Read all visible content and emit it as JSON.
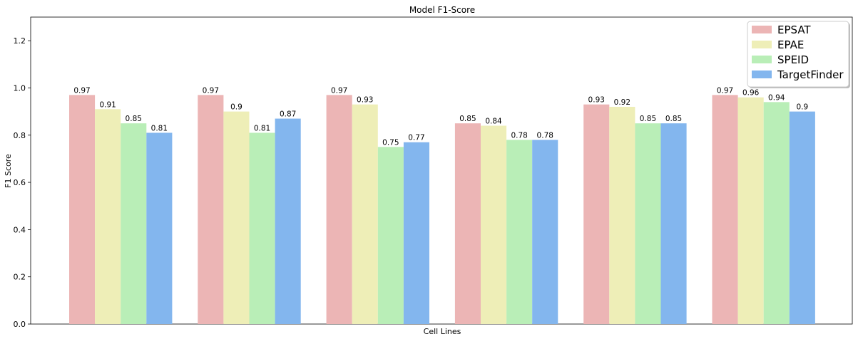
{
  "chart_data": {
    "type": "bar",
    "title": "Model F1-Score",
    "xlabel": "Cell Lines",
    "ylabel": "F1 Score",
    "ylim": [
      0,
      1.3
    ],
    "yticks": [
      "0.0",
      "0.2",
      "0.4",
      "0.6",
      "0.8",
      "1.0",
      "1.2"
    ],
    "categories": [
      "",
      "",
      "",
      "",
      "",
      ""
    ],
    "legend_position": "top-right",
    "series": [
      {
        "name": "EPSAT",
        "color": "#ecb5b5",
        "values": [
          0.97,
          0.97,
          0.97,
          0.85,
          0.93,
          0.97
        ],
        "labels": [
          "0.97",
          "0.97",
          "0.97",
          "0.85",
          "0.93",
          "0.97"
        ]
      },
      {
        "name": "EPAE",
        "color": "#eeeeb7",
        "values": [
          0.91,
          0.9,
          0.93,
          0.84,
          0.92,
          0.96
        ],
        "labels": [
          "0.91",
          "0.9",
          "0.93",
          "0.84",
          "0.92",
          "0.96"
        ]
      },
      {
        "name": "SPEID",
        "color": "#b9eeb7",
        "values": [
          0.85,
          0.81,
          0.75,
          0.78,
          0.85,
          0.94
        ],
        "labels": [
          "0.85",
          "0.81",
          "0.75",
          "0.78",
          "0.85",
          "0.94"
        ]
      },
      {
        "name": "TargetFinder",
        "color": "#83b6ee",
        "values": [
          0.81,
          0.87,
          0.77,
          0.78,
          0.85,
          0.9
        ],
        "labels": [
          "0.81",
          "0.87",
          "0.77",
          "0.78",
          "0.85",
          "0.9"
        ]
      }
    ]
  }
}
